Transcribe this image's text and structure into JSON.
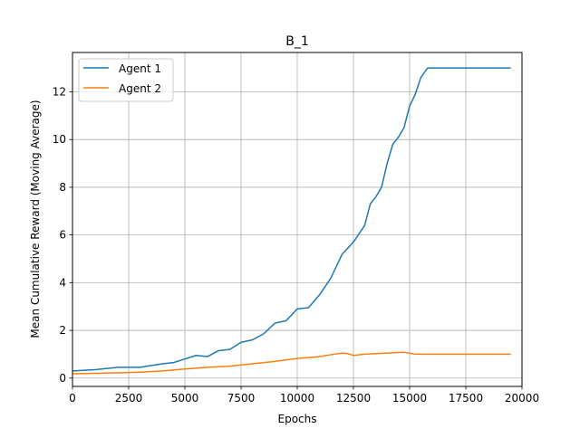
{
  "chart_data": {
    "type": "line",
    "title": "B_1",
    "xlabel": "Epochs",
    "ylabel": "Mean Cumulative Reward (Moving Average)",
    "xlim": [
      0,
      20000
    ],
    "ylim": [
      -0.35,
      13.65
    ],
    "xticks": [
      0,
      2500,
      5000,
      7500,
      10000,
      12500,
      15000,
      17500,
      20000
    ],
    "xtick_labels": [
      "0",
      "2500",
      "5000",
      "7500",
      "10000",
      "12500",
      "15000",
      "17500",
      "20000"
    ],
    "yticks": [
      0,
      2,
      4,
      6,
      8,
      10,
      12
    ],
    "ytick_labels": [
      "0",
      "2",
      "4",
      "6",
      "8",
      "10",
      "12"
    ],
    "grid": true,
    "legend": "top-left",
    "series": [
      {
        "name": "Agent 1",
        "color": "#1f77b4",
        "x": [
          0,
          1000,
          2000,
          3000,
          4000,
          4500,
          5000,
          5500,
          6000,
          6500,
          7000,
          7500,
          8000,
          8500,
          9000,
          9500,
          10000,
          10500,
          11000,
          11500,
          12000,
          12500,
          13000,
          13250,
          13500,
          13750,
          14000,
          14250,
          14500,
          14750,
          15000,
          15250,
          15500,
          15800,
          16500,
          17500,
          18500,
          19500
        ],
        "y": [
          0.3,
          0.35,
          0.45,
          0.45,
          0.6,
          0.65,
          0.8,
          0.95,
          0.9,
          1.15,
          1.2,
          1.5,
          1.6,
          1.85,
          2.3,
          2.4,
          2.9,
          2.95,
          3.5,
          4.2,
          5.2,
          5.7,
          6.4,
          7.3,
          7.6,
          8.0,
          9.0,
          9.8,
          10.1,
          10.5,
          11.4,
          11.9,
          12.6,
          13.0,
          13.0,
          13.0,
          13.0,
          13.0
        ]
      },
      {
        "name": "Agent 2",
        "color": "#ff7f0e",
        "x": [
          0,
          1000,
          2000,
          3000,
          4000,
          5000,
          6000,
          7000,
          8000,
          9000,
          10000,
          11000,
          11500,
          12000,
          12250,
          12500,
          13000,
          14000,
          14750,
          15250,
          15500,
          16500,
          17500,
          18500,
          19500
        ],
        "y": [
          0.18,
          0.2,
          0.22,
          0.25,
          0.3,
          0.38,
          0.45,
          0.5,
          0.6,
          0.7,
          0.82,
          0.9,
          0.98,
          1.05,
          1.02,
          0.95,
          1.0,
          1.05,
          1.08,
          1.0,
          1.0,
          1.0,
          1.0,
          1.0,
          1.0
        ]
      }
    ]
  }
}
